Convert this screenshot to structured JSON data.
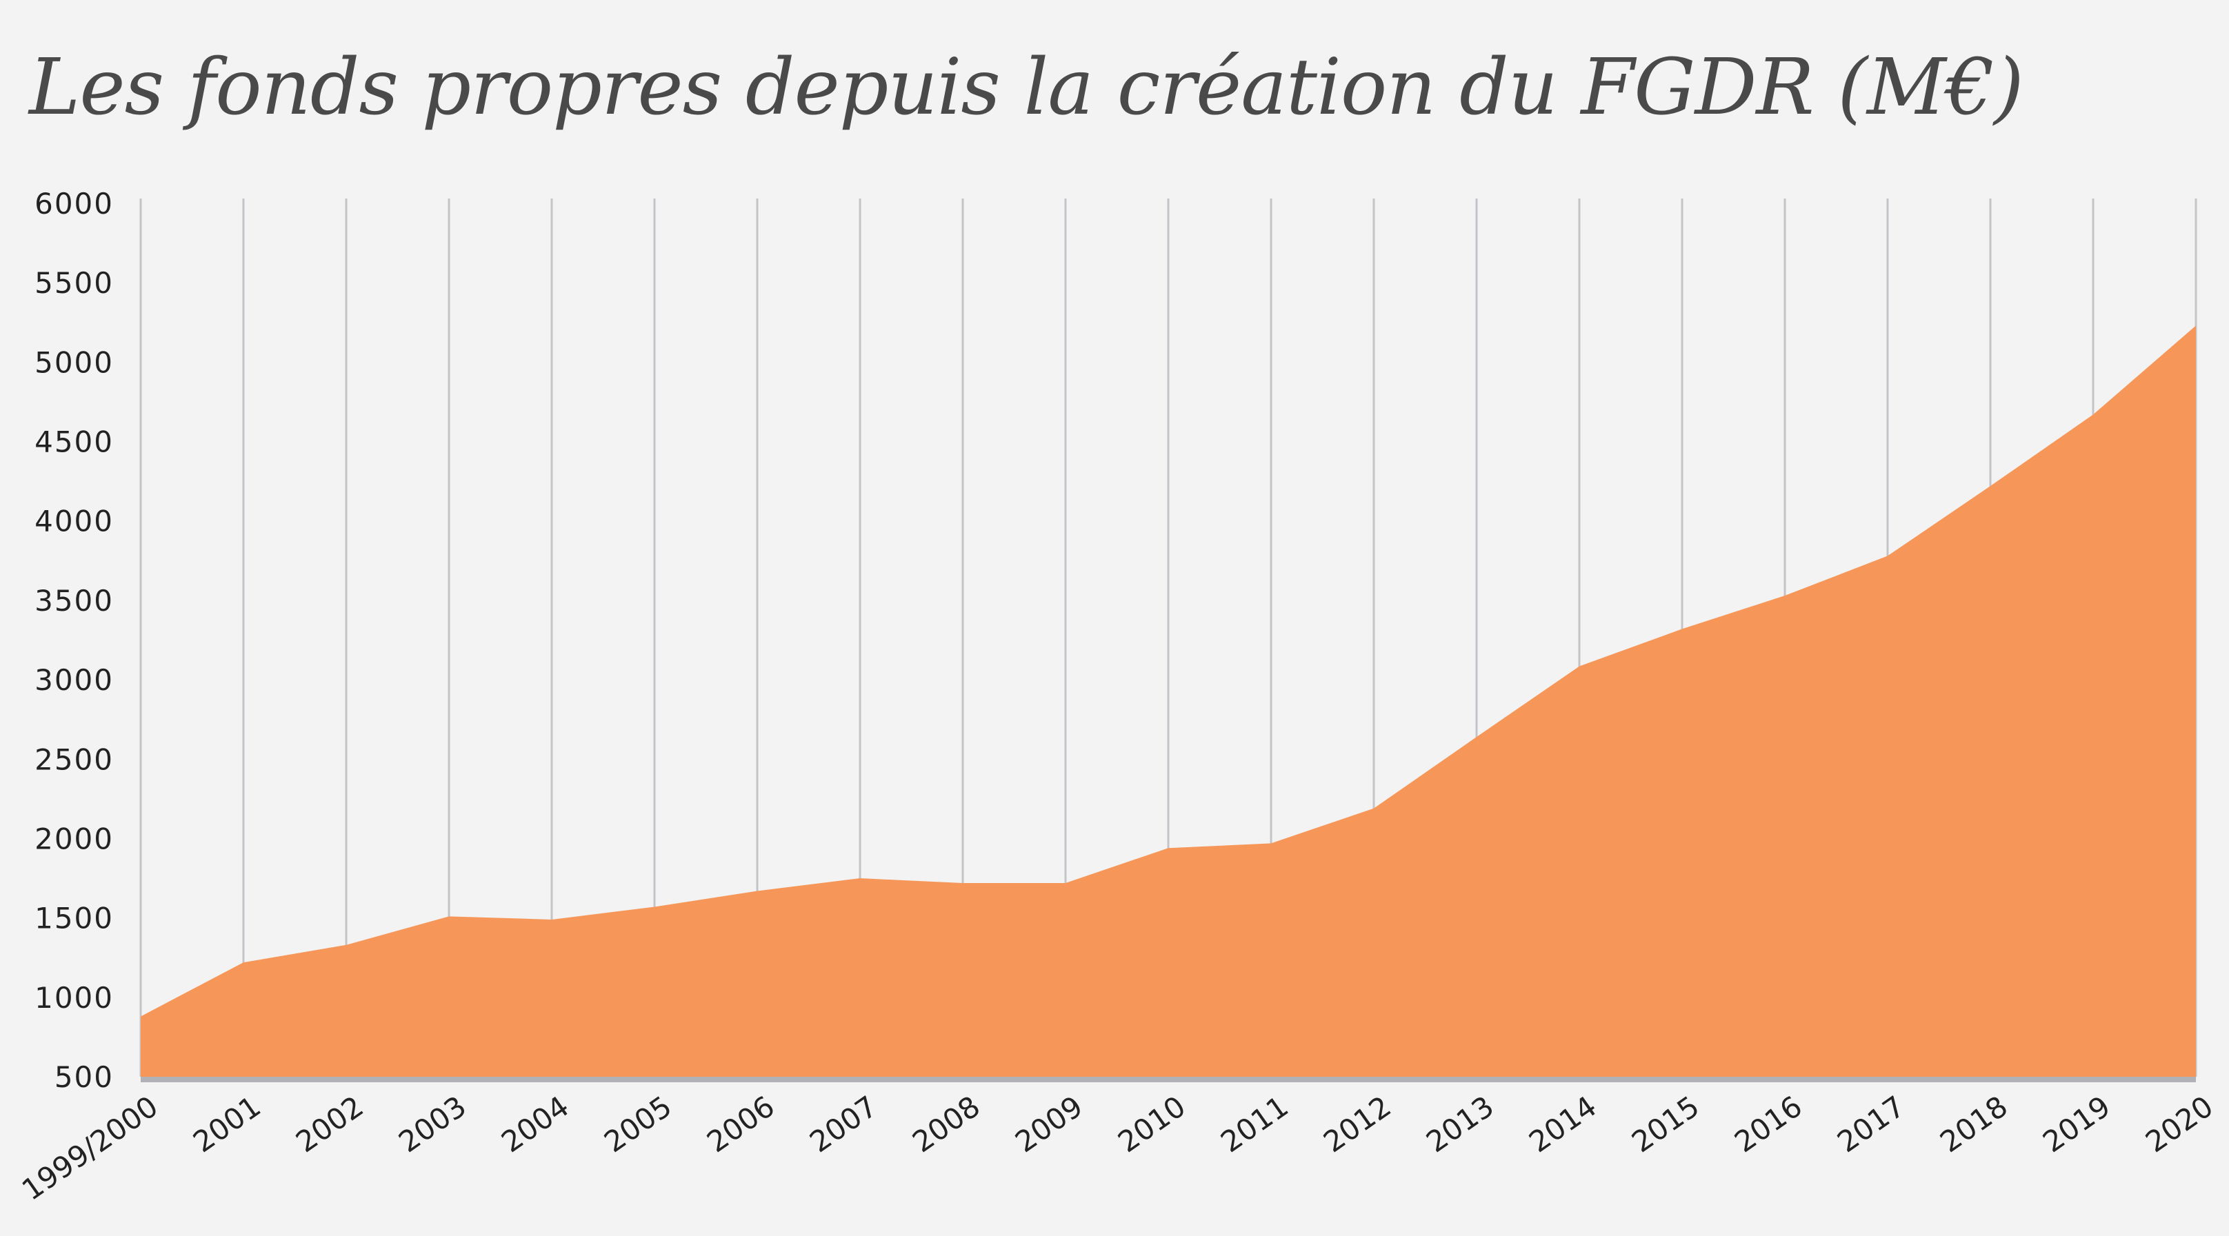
{
  "chart_data": {
    "type": "area",
    "title": "Les fonds propres depuis la création du FGDR (M€)",
    "xlabel": "",
    "ylabel": "",
    "categories": [
      "1999/2000",
      "2001",
      "2002",
      "2003",
      "2004",
      "2005",
      "2006",
      "2007",
      "2008",
      "2009",
      "2010",
      "2011",
      "2012",
      "2013",
      "2014",
      "2015",
      "2016",
      "2017",
      "2018",
      "2019",
      "2020"
    ],
    "values": [
      880,
      1220,
      1330,
      1510,
      1490,
      1570,
      1670,
      1750,
      1720,
      1720,
      1940,
      1970,
      2190,
      2640,
      3085,
      3320,
      3530,
      3780,
      4220,
      4670,
      5230
    ],
    "ylim": [
      500,
      6000
    ],
    "yticks": [
      "500",
      "1000",
      "1500",
      "2000",
      "2500",
      "3000",
      "3500",
      "4000",
      "4500",
      "5000",
      "5500",
      "6000"
    ],
    "grid": "vertical",
    "legend": "none",
    "colors": {
      "fill": "#f69759",
      "grid": "#c4c4c8",
      "axis": "#b0b2b8",
      "background": "#f3f3f3"
    }
  }
}
